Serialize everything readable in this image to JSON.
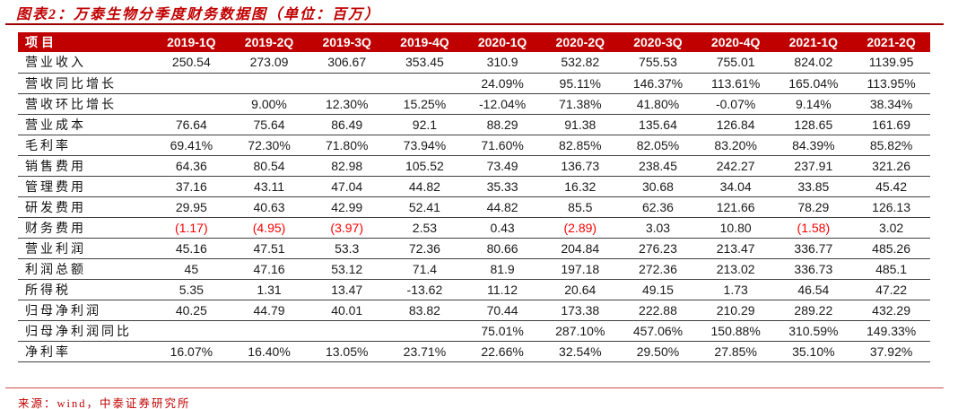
{
  "page": {
    "title": "图表2：万泰生物分季度财务数据图（单位：百万）",
    "source": "来源：wind，中泰证券研究所"
  },
  "colors": {
    "accent_red": "#c00000",
    "title_rule": "#a00000",
    "negative_value": "#ff0000",
    "row_border": "#404040",
    "header_text": "#ffffff"
  },
  "chart_data": {
    "type": "table",
    "title": "图表2：万泰生物分季度财务数据图（单位：百万）",
    "unit": "百万",
    "columns": [
      "项目",
      "2019-1Q",
      "2019-2Q",
      "2019-3Q",
      "2019-4Q",
      "2020-1Q",
      "2020-2Q",
      "2020-3Q",
      "2020-4Q",
      "2021-1Q",
      "2021-2Q"
    ],
    "negative_style": "values wrapped in parentheses are rendered red",
    "rows": [
      {
        "label": "营业收入",
        "values": [
          "250.54",
          "273.09",
          "306.67",
          "353.45",
          "310.9",
          "532.82",
          "755.53",
          "755.01",
          "824.02",
          "1139.95"
        ]
      },
      {
        "label": "营收同比增长",
        "values": [
          "",
          "",
          "",
          "",
          "24.09%",
          "95.11%",
          "146.37%",
          "113.61%",
          "165.04%",
          "113.95%"
        ]
      },
      {
        "label": "营收环比增长",
        "values": [
          "",
          "9.00%",
          "12.30%",
          "15.25%",
          "-12.04%",
          "71.38%",
          "41.80%",
          "-0.07%",
          "9.14%",
          "38.34%"
        ]
      },
      {
        "label": "营业成本",
        "values": [
          "76.64",
          "75.64",
          "86.49",
          "92.1",
          "88.29",
          "91.38",
          "135.64",
          "126.84",
          "128.65",
          "161.69"
        ]
      },
      {
        "label": "毛利率",
        "values": [
          "69.41%",
          "72.30%",
          "71.80%",
          "73.94%",
          "71.60%",
          "82.85%",
          "82.05%",
          "83.20%",
          "84.39%",
          "85.82%"
        ]
      },
      {
        "label": "销售费用",
        "values": [
          "64.36",
          "80.54",
          "82.98",
          "105.52",
          "73.49",
          "136.73",
          "238.45",
          "242.27",
          "237.91",
          "321.26"
        ]
      },
      {
        "label": "管理费用",
        "values": [
          "37.16",
          "43.11",
          "47.04",
          "44.82",
          "35.33",
          "16.32",
          "30.68",
          "34.04",
          "33.85",
          "45.42"
        ]
      },
      {
        "label": "研发费用",
        "values": [
          "29.95",
          "40.63",
          "42.99",
          "52.41",
          "44.82",
          "85.5",
          "62.36",
          "121.66",
          "78.29",
          "126.13"
        ]
      },
      {
        "label": "财务费用",
        "values": [
          "(1.17)",
          "(4.95)",
          "(3.97)",
          "2.53",
          "0.43",
          "(2.89)",
          "3.03",
          "10.80",
          "(1.58)",
          "3.02"
        ]
      },
      {
        "label": "营业利润",
        "values": [
          "45.16",
          "47.51",
          "53.3",
          "72.36",
          "80.66",
          "204.84",
          "276.23",
          "213.47",
          "336.77",
          "485.26"
        ]
      },
      {
        "label": "利润总额",
        "values": [
          "45",
          "47.16",
          "53.12",
          "71.4",
          "81.9",
          "197.18",
          "272.36",
          "213.02",
          "336.73",
          "485.1"
        ]
      },
      {
        "label": "所得税",
        "values": [
          "5.35",
          "1.31",
          "13.47",
          "-13.62",
          "11.12",
          "20.64",
          "49.15",
          "1.73",
          "46.54",
          "47.22"
        ]
      },
      {
        "label": "归母净利润",
        "values": [
          "40.25",
          "44.79",
          "40.01",
          "83.82",
          "70.44",
          "173.38",
          "222.88",
          "210.29",
          "289.22",
          "432.29"
        ]
      },
      {
        "label": "归母净利润同比",
        "values": [
          "",
          "",
          "",
          "",
          "75.01%",
          "287.10%",
          "457.06%",
          "150.88%",
          "310.59%",
          "149.33%"
        ]
      },
      {
        "label": "净利率",
        "values": [
          "16.07%",
          "16.40%",
          "13.05%",
          "23.71%",
          "22.66%",
          "32.54%",
          "29.50%",
          "27.85%",
          "35.10%",
          "37.92%"
        ]
      }
    ]
  }
}
